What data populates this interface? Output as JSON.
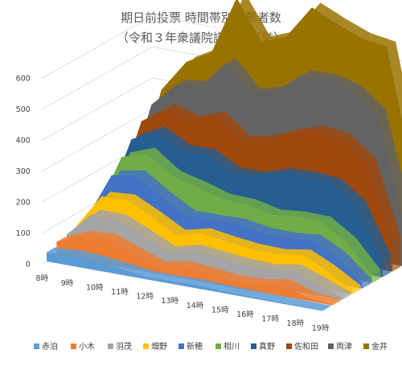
{
  "chart_data": {
    "type": "area",
    "title": "期日前投票 時間帯別投票者数",
    "subtitle": "（令和３年衆議院議員総選挙）",
    "categories": [
      "8時",
      "9時",
      "10時",
      "11時",
      "12時",
      "13時",
      "14時",
      "15時",
      "16時",
      "17時",
      "18時",
      "19時"
    ],
    "ylim": [
      0,
      600
    ],
    "yticks": [
      "0",
      "100",
      "200",
      "300",
      "400",
      "500",
      "600"
    ],
    "grid": true,
    "legend_position": "bottom",
    "series": [
      {
        "name": "赤泊",
        "color": "#5B9BD5",
        "values": [
          30,
          35,
          30,
          20,
          10,
          10,
          12,
          8,
          6,
          4,
          3,
          2
        ]
      },
      {
        "name": "小木",
        "color": "#ED7D31",
        "values": [
          15,
          45,
          55,
          35,
          15,
          30,
          20,
          15,
          20,
          35,
          8,
          2
        ]
      },
      {
        "name": "羽茂",
        "color": "#A5A5A5",
        "values": [
          5,
          50,
          45,
          40,
          30,
          35,
          35,
          35,
          30,
          30,
          30,
          3
        ]
      },
      {
        "name": "畑野",
        "color": "#FFC000",
        "values": [
          10,
          40,
          45,
          40,
          35,
          35,
          30,
          30,
          30,
          30,
          20,
          5
        ]
      },
      {
        "name": "新穂",
        "color": "#4472C4",
        "values": [
          5,
          50,
          60,
          45,
          45,
          25,
          40,
          35,
          35,
          30,
          25,
          5
        ]
      },
      {
        "name": "相川",
        "color": "#70AD47",
        "values": [
          5,
          40,
          55,
          50,
          75,
          50,
          45,
          40,
          50,
          40,
          30,
          8
        ]
      },
      {
        "name": "真野",
        "color": "#255E91",
        "values": [
          5,
          40,
          50,
          65,
          85,
          65,
          70,
          115,
          110,
          105,
          100,
          30
        ]
      },
      {
        "name": "佐和田",
        "color": "#9E480E",
        "values": [
          8,
          40,
          55,
          75,
          105,
          85,
          100,
          110,
          130,
          125,
          120,
          40
        ]
      },
      {
        "name": "両津",
        "color": "#636363",
        "values": [
          10,
          35,
          60,
          95,
          155,
          135,
          140,
          170,
          150,
          140,
          140,
          65
        ]
      },
      {
        "name": "金井",
        "color": "#997300",
        "values": [
          8,
          30,
          55,
          90,
          190,
          150,
          160,
          200,
          160,
          150,
          200,
          135
        ]
      }
    ]
  }
}
